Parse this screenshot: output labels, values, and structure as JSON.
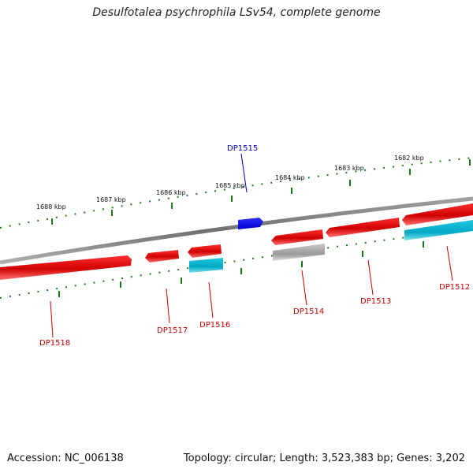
{
  "title": "Desulfotalea psychrophila LSv54, complete genome",
  "footer": {
    "accession": "Accession: NC_006138",
    "summary": "Topology: circular; Length: 3,523,383 bp; Genes: 3,202"
  },
  "kbp_labels": [
    "1688 kbp",
    "1687 kbp",
    "1686 kbp",
    "1685 kbp",
    "1684 kbp",
    "1683 kbp",
    "1682 kbp"
  ],
  "genes": [
    {
      "id": "DP1515",
      "color": "#0000dd",
      "strand": "+",
      "track": "outer-forward"
    },
    {
      "id": "DP1518",
      "color": "#dd0000",
      "strand": "-",
      "track": "forward"
    },
    {
      "id": "DP1517",
      "color": "#dd0000",
      "strand": "-",
      "track": "forward"
    },
    {
      "id": "DP1516",
      "color": "#dd0000",
      "strand": "-",
      "track": "forward"
    },
    {
      "id": "DP1514",
      "color": "#dd0000",
      "strand": "+",
      "track": "forward"
    },
    {
      "id": "DP1513",
      "color": "#dd0000",
      "strand": "-",
      "track": "forward"
    },
    {
      "id": "DP1512",
      "color": "#dd0000",
      "strand": "-",
      "track": "forward"
    }
  ],
  "colors": {
    "backbone": "#808080",
    "tick": "#1a7a1a",
    "gene_forward": "#e00000",
    "gene_reverse_cds": "#00bcd4",
    "gene_rna": "#aaaaaa",
    "gene_highlight": "#0000ff",
    "label_red": "#cc0000",
    "label_blue": "#0000cc"
  }
}
